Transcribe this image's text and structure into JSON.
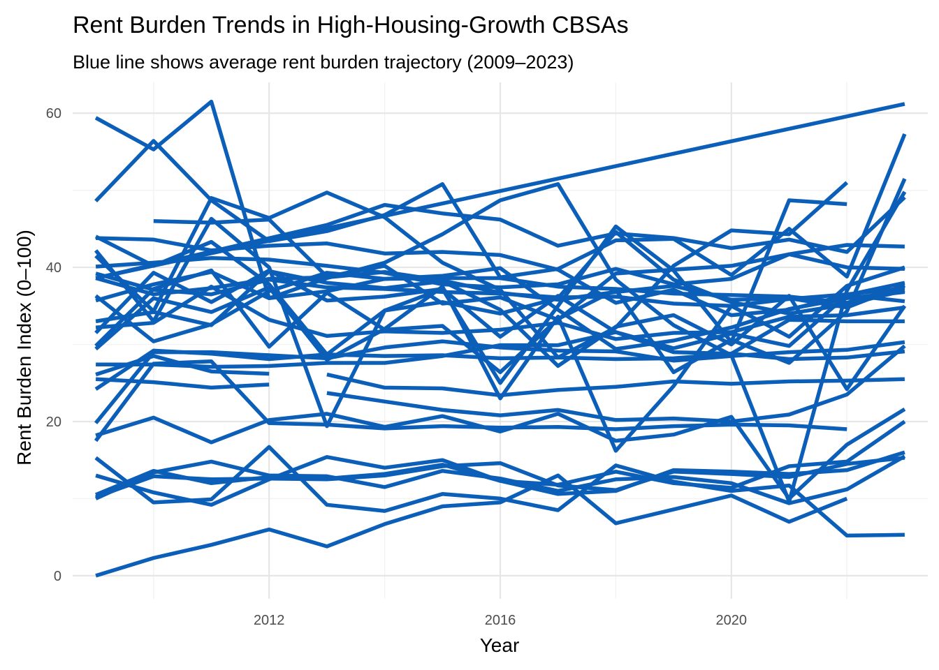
{
  "chart_data": {
    "type": "line",
    "title": "Rent Burden Trends in High-Housing-Growth CBSAs",
    "subtitle": "Blue line shows average rent burden trajectory (2009–2023)",
    "xlabel": "Year",
    "ylabel": "Rent Burden Index (0–100)",
    "xlim": [
      2008.6,
      2023.4
    ],
    "ylim": [
      -3,
      64
    ],
    "x_major_ticks": [
      2012,
      2016,
      2020
    ],
    "x_minor_ticks": [
      2010,
      2014,
      2018,
      2022
    ],
    "y_major_ticks": [
      0,
      20,
      40,
      60
    ],
    "y_minor_ticks": [
      10,
      30,
      50
    ],
    "grid": true,
    "legend": "none",
    "line_color": "#0b5fb8",
    "series": [
      {
        "x": [
          2009,
          2010,
          2011,
          2012,
          2013,
          2014,
          2015,
          2016,
          2017,
          2018,
          2019,
          2020,
          2021,
          2022,
          2023
        ],
        "y": [
          0,
          2.3,
          4,
          6,
          3.8,
          6.7,
          9,
          9.5,
          13,
          6.8,
          8.6,
          10.4,
          7,
          10,
          null
        ]
      },
      {
        "x": [
          2009,
          2010,
          2011,
          2012,
          2013,
          2014,
          2015,
          2016,
          2017,
          2018,
          2019,
          2020,
          2021,
          2022,
          2023
        ],
        "y": [
          15.3,
          9.5,
          9.9,
          16.7,
          9.2,
          8.4,
          10.6,
          10,
          8.5,
          14.3,
          12.2,
          11,
          11.7,
          5.2,
          5.3
        ]
      },
      {
        "x": [
          2009,
          2010,
          2011,
          2012,
          2013,
          2014,
          2015,
          2016,
          2017,
          2018,
          2019,
          2020,
          2021,
          2022,
          2023
        ],
        "y": [
          10,
          13.4,
          14.8,
          13,
          12.9,
          11.5,
          13.6,
          12.6,
          11,
          12.5,
          12.8,
          12,
          9.4,
          11.2,
          15.5
        ]
      },
      {
        "x": [
          2009,
          2010,
          2011,
          2012,
          2013,
          2014,
          2015,
          2016,
          2017,
          2018,
          2019,
          2020,
          2021,
          2022,
          2023
        ],
        "y": [
          13,
          10.8,
          9.2,
          12.5,
          15.4,
          14,
          15,
          12.3,
          10.6,
          11,
          13.7,
          13.5,
          13.2,
          13.7,
          16
        ]
      },
      {
        "x": [
          2009,
          2010,
          2011,
          2012,
          2013,
          2014,
          2015,
          2016,
          2017,
          2018,
          2019,
          2020,
          2021,
          2022,
          2023
        ],
        "y": [
          10.5,
          13.6,
          12,
          12.8,
          12.6,
          13.2,
          14.4,
          12.3,
          11.8,
          13.5,
          12,
          11.4,
          14.2,
          14.8,
          20
        ]
      },
      {
        "x": [
          2009,
          2010,
          2011,
          2012,
          2013,
          2014,
          2015,
          2016,
          2017,
          2018,
          2019,
          2020,
          2021,
          2022,
          2023
        ],
        "y": [
          18.2,
          20.5,
          17.3,
          20.2,
          21,
          19.3,
          20.7,
          18.7,
          21,
          17.5,
          18.3,
          20.6,
          10,
          17,
          21.6
        ]
      },
      {
        "x": [
          2009,
          2010,
          2011,
          2012,
          2013,
          2014,
          2015,
          2016,
          2017,
          2018,
          2019,
          2020,
          2021,
          2022
        ],
        "y": [
          17.5,
          27.5,
          27.8,
          19.8,
          19.6,
          19.1,
          19.4,
          19.2,
          19.3,
          19.0,
          19.4,
          19.6,
          19.5,
          19.0
        ]
      },
      {
        "x": [
          2009,
          2010,
          2011,
          2012,
          2013,
          2014,
          2015,
          2016,
          2017,
          2018,
          2019,
          2020,
          2021,
          2022,
          2023
        ],
        "y": [
          19.8,
          29,
          29,
          28.6,
          28.2,
          29.6,
          30.4,
          29.6,
          29.2,
          29.1,
          27.9,
          28.5,
          29,
          29.3,
          30.3
        ]
      },
      {
        "x": [
          2009,
          2010,
          2011,
          2012,
          2013,
          2014,
          2015,
          2016,
          2017,
          2018,
          2019,
          2020,
          2021,
          2022,
          2023
        ],
        "y": [
          27.4,
          27.4,
          27.1,
          27.2,
          27.6,
          27.6,
          28.5,
          29.9,
          29.9,
          31.6,
          29,
          28.8,
          33.2,
          33,
          33
        ]
      },
      {
        "x": [
          2009,
          2010,
          2011,
          2012
        ],
        "y": [
          25.5,
          25.1,
          24.4,
          24.8
        ]
      },
      {
        "x": [
          2009,
          2010,
          2011,
          2012
        ],
        "y": [
          26.1,
          28.5,
          26.5,
          26.2
        ]
      },
      {
        "x": [
          2009,
          2010,
          2011,
          2012,
          2013,
          2014,
          2015,
          2016,
          2017,
          2018,
          2019,
          2020,
          2021,
          2022,
          2023
        ],
        "y": [
          29.4,
          36,
          34.2,
          37.4,
          28,
          32,
          37.5,
          23,
          33.6,
          16.2,
          24.6,
          35,
          31,
          37.6,
          40
        ]
      },
      {
        "x": [
          2009,
          2010,
          2011,
          2012,
          2013,
          2014,
          2015,
          2016,
          2017,
          2018,
          2019,
          2020,
          2021,
          2022,
          2023
        ],
        "y": [
          31.5,
          39.3,
          35.5,
          39.6,
          35.7,
          36.2,
          37.2,
          31,
          36.3,
          31.6,
          29.5,
          31.4,
          29.8,
          36.4,
          38
        ]
      },
      {
        "x": [
          2009,
          2010,
          2011,
          2012,
          2013,
          2014,
          2015,
          2016,
          2017,
          2018,
          2019,
          2020,
          2021,
          2022,
          2023
        ],
        "y": [
          33,
          34.2,
          32.5,
          39.5,
          38,
          37.3,
          38.2,
          34.5,
          27.2,
          32.3,
          33.8,
          30,
          36.3,
          24.2,
          35
        ]
      },
      {
        "x": [
          2009,
          2010,
          2011,
          2012,
          2013,
          2014,
          2015,
          2016,
          2017,
          2018,
          2019,
          2020,
          2021,
          2022,
          2023
        ],
        "y": [
          35.7,
          37.8,
          39.4,
          36,
          36.9,
          38.5,
          38.9,
          39.9,
          34.5,
          29.4,
          30.5,
          32.2,
          34.6,
          36,
          36.8
        ]
      },
      {
        "x": [
          2009,
          2010,
          2011,
          2012,
          2013,
          2014,
          2015,
          2016,
          2017,
          2018,
          2019,
          2020,
          2021,
          2022,
          2023
        ],
        "y": [
          38.6,
          36.5,
          37.3,
          38.5,
          38.7,
          39.4,
          38.3,
          36.7,
          35.8,
          36.8,
          37.6,
          35.8,
          36,
          34.8,
          37.7
        ]
      },
      {
        "x": [
          2009,
          2010,
          2011,
          2012,
          2013,
          2014,
          2015,
          2016,
          2017,
          2018,
          2019,
          2020,
          2021,
          2022,
          2023
        ],
        "y": [
          40.1,
          40.6,
          41.2,
          41,
          40.2,
          39.3,
          37.8,
          37.4,
          37.8,
          39.8,
          37.8,
          38.5,
          41.7,
          40,
          39.8
        ]
      },
      {
        "x": [
          2009,
          2010,
          2011,
          2012,
          2013,
          2014,
          2015,
          2016,
          2017,
          2018,
          2019,
          2020,
          2021,
          2022,
          2023
        ],
        "y": [
          43.8,
          43.6,
          42.2,
          42.8,
          43.1,
          41.8,
          42,
          41.6,
          39.7,
          35.4,
          37.1,
          33.8,
          34.5,
          36.4,
          35.6
        ]
      },
      {
        "x": [
          2009,
          2010,
          2011,
          2012,
          2013,
          2014,
          2015,
          2016,
          2017,
          2018,
          2019,
          2020,
          2021,
          2022,
          2023
        ],
        "y": [
          44,
          40.2,
          43.3,
          37.8,
          28.7,
          34.4,
          35.5,
          34,
          36,
          44.6,
          38.4,
          35.5,
          34,
          35.2,
          37
        ]
      },
      {
        "x": [
          2009,
          2010,
          2011,
          2012,
          2013,
          2014,
          2015,
          2016,
          2017,
          2018,
          2019,
          2020,
          2021,
          2022,
          2023
        ],
        "y": [
          48.6,
          56.4,
          48.7,
          43.4,
          44.7,
          46.8,
          50.8,
          38.7,
          39.8,
          43.5,
          43.7,
          39,
          45,
          38.8,
          57.3
        ]
      },
      {
        "x": [
          2009,
          2010,
          2011,
          2012,
          2013,
          2014,
          2015,
          2016,
          2017,
          2018,
          2019,
          2020,
          2021,
          2022,
          2023
        ],
        "y": [
          59.4,
          55.3,
          61.5,
          36,
          38.6,
          40.6,
          44.3,
          48.7,
          50.8,
          38.4,
          32.5,
          28.6,
          9.6,
          37,
          49.8
        ]
      },
      {
        "x": [
          2009,
          2010,
          2011,
          2012,
          2013,
          2014,
          2015,
          2016,
          2017,
          2018,
          2019,
          2020,
          2021,
          2022
        ],
        "y": [
          42.2,
          33,
          46.3,
          40,
          19.4,
          34.4,
          37.2,
          25,
          35,
          45.3,
          39.6,
          30.3,
          48.7,
          48.2
        ]
      },
      {
        "x": [
          2009,
          2010,
          2011,
          2012,
          2013,
          2014,
          2015,
          2016,
          2017,
          2018,
          2019,
          2020,
          2021,
          2022
        ],
        "y": [
          41.5,
          34.3,
          49,
          46.4,
          49.7,
          46.5,
          40.6,
          37.1,
          28.3,
          32.2,
          40.2,
          44.8,
          44.3,
          51
        ]
      },
      {
        "x": [
          2009,
          2010,
          2011,
          2012,
          2013,
          2014,
          2015,
          2016,
          2017,
          2018,
          2019,
          2020,
          2021,
          2022,
          2023
        ],
        "y": [
          36.3,
          30.4,
          32.6,
          36.9,
          39.3,
          38.5,
          38.6,
          38.6,
          37.5,
          37.2,
          36.6,
          36.4,
          36.2,
          35.4,
          37.6
        ]
      },
      {
        "x": [
          2009,
          2010,
          2011,
          2012,
          2013,
          2014,
          2015,
          2016,
          2017,
          2018,
          2019,
          2020,
          2021,
          2022,
          2023
        ],
        "y": [
          39.2,
          37.1,
          36.5,
          38.4,
          37.4,
          37.2,
          36.8,
          36.6,
          36.1,
          36.2,
          35.3,
          35,
          35.9,
          36.5,
          37.3
        ]
      },
      {
        "x": [
          2009,
          2010,
          2011,
          2012,
          2013,
          2014,
          2015,
          2016,
          2017,
          2018,
          2019,
          2020,
          2021,
          2022,
          2023
        ],
        "y": [
          32.2,
          32.8,
          37.5,
          33.2,
          31.1,
          31.7,
          31.5,
          31.9,
          32.8,
          30.7,
          31.5,
          31.6,
          33.6,
          33.8,
          34.8
        ]
      },
      {
        "x": [
          2009,
          2010,
          2011,
          2012,
          2013,
          2014,
          2015,
          2016,
          2017,
          2018,
          2019,
          2020,
          2021,
          2022,
          2023
        ],
        "y": [
          24.2,
          29.2,
          28.8,
          28.1,
          28.7,
          28.5,
          28.6,
          28.2,
          28.3,
          28.1,
          28.2,
          28.8,
          28.1,
          28.3,
          29.1
        ]
      },
      {
        "x": [
          2009,
          2010,
          2011,
          2012,
          2013,
          2014,
          2015,
          2016,
          2017,
          2018,
          2019,
          2020,
          2021,
          2022,
          2023
        ],
        "y": [
          10.2,
          12.9,
          12.5,
          12.6,
          12.5,
          13,
          14.2,
          14.6,
          11.7,
          11.1,
          13.5,
          13.2,
          12.8,
          14.5,
          15.3
        ]
      },
      {
        "x": [
          2013,
          2014,
          2015,
          2016,
          2017,
          2018,
          2019,
          2020,
          2021,
          2022,
          2023
        ],
        "y": [
          26.1,
          24.4,
          24.3,
          23.4,
          24.1,
          24.5,
          25.2,
          24.9,
          25.2,
          25.3,
          25.5
        ]
      },
      {
        "x": [
          2013,
          2014,
          2015,
          2016,
          2017,
          2018,
          2019,
          2020,
          2021,
          2022,
          2023
        ],
        "y": [
          23.7,
          22.6,
          21.5,
          20.8,
          21.5,
          20.2,
          20.4,
          20,
          20.9,
          23.5,
          29.8
        ]
      },
      {
        "x": [
          2009,
          2013,
          2014,
          2015,
          2016,
          2017,
          2018,
          2019,
          2020,
          2021,
          2022,
          2023
        ],
        "y": [
          38.6,
          45.5,
          48.1,
          47,
          46.2,
          42.8,
          44.4,
          43.8,
          42.5,
          43.6,
          42,
          49.1
        ]
      },
      {
        "x": [
          2010,
          2011,
          2012,
          2013,
          2014,
          2015,
          2016,
          2017,
          2018,
          2019,
          2020,
          2021,
          2022,
          2023
        ],
        "y": [
          46,
          45.8,
          46.2,
          38.8,
          40.2,
          35.3,
          36.1,
          33.2,
          39.2,
          39.7,
          40.2,
          41.7,
          42.9,
          42.7
        ]
      },
      {
        "x": [
          2009,
          2023
        ],
        "y": [
          38.6,
          61.2
        ]
      },
      {
        "x": [
          2009,
          2010,
          2011,
          2012,
          2013,
          2014,
          2015,
          2016,
          2017,
          2018,
          2019,
          2020,
          2021,
          2022,
          2023
        ],
        "y": [
          29.8,
          37.2,
          39.6,
          29.7,
          36.7,
          31.9,
          32.4,
          26.4,
          33.3,
          37.1,
          26.4,
          30.6,
          27.6,
          34.3,
          51.5
        ]
      }
    ]
  }
}
